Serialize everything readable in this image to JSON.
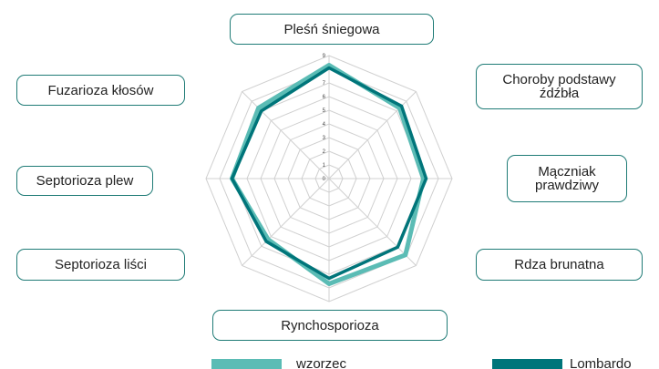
{
  "chart_data": {
    "type": "radar",
    "categories": [
      "Pleśń śniegowa",
      "Choroby podstawy źdźbła",
      "Mączniak prawdziwy",
      "Rdza brunatna",
      "Rynchosporioza",
      "Septorioza liści",
      "Septorioza plew",
      "Fuzarioza kłosów"
    ],
    "series": [
      {
        "name": "wzorzec",
        "color": "#5bbcb5",
        "values": [
          8.3,
          7.3,
          6.9,
          7.9,
          7.7,
          6.3,
          7.1,
          7.3
        ]
      },
      {
        "name": "Lombardo",
        "color": "#00757a",
        "values": [
          8.1,
          7.5,
          7.1,
          7.1,
          7.3,
          6.5,
          7.1,
          7.0
        ]
      }
    ],
    "rlim": [
      0,
      9
    ],
    "rticks": [
      0,
      1,
      2,
      3,
      4,
      5,
      6,
      7,
      8,
      9
    ],
    "grid": true,
    "legend": "bottom"
  }
}
